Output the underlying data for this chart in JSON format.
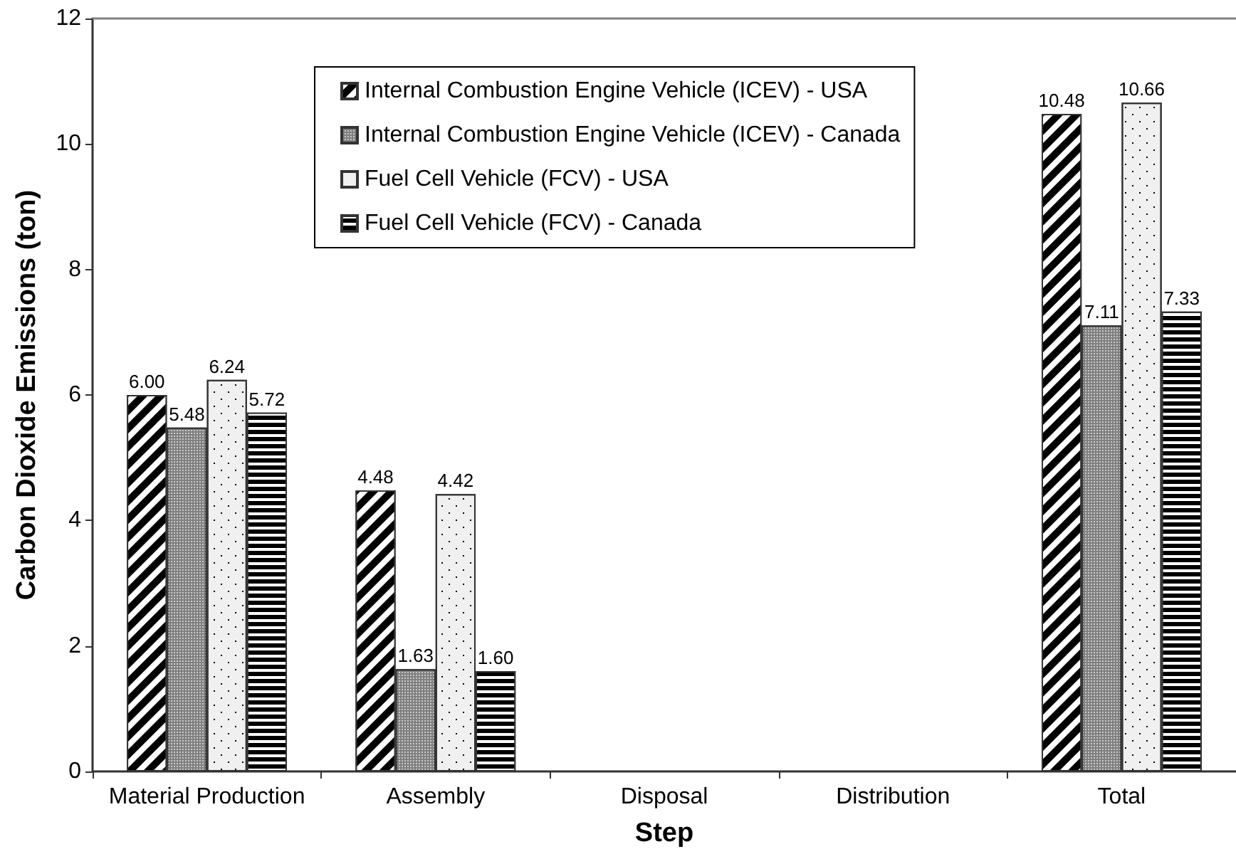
{
  "chart_data": {
    "type": "bar",
    "xlabel": "Step",
    "ylabel": "Carbon Dioxide Emissions (ton)",
    "categories": [
      "Material Production",
      "Assembly",
      "Disposal",
      "Distribution",
      "Total"
    ],
    "series": [
      {
        "name": "Internal Combustion Engine Vehicle (ICEV) - USA",
        "color": "#000000",
        "values": [
          6.0,
          4.48,
          null,
          null,
          10.48
        ],
        "value_labels": [
          "6.00",
          "4.48",
          null,
          null,
          "10.48"
        ]
      },
      {
        "name": "Internal Combustion Engine Vehicle (ICEV) - Canada",
        "color": "#808080",
        "values": [
          5.48,
          1.63,
          null,
          null,
          7.11
        ],
        "value_labels": [
          "5.48",
          "1.63",
          null,
          null,
          "7.11"
        ]
      },
      {
        "name": "Fuel Cell Vehicle (FCV) - USA",
        "color": "#f0f0f0",
        "values": [
          6.24,
          4.42,
          null,
          null,
          10.66
        ],
        "value_labels": [
          "6.24",
          "4.42",
          null,
          null,
          "10.66"
        ]
      },
      {
        "name": "Fuel Cell Vehicle (FCV) - Canada",
        "color": "#000000",
        "values": [
          5.72,
          1.6,
          null,
          null,
          7.33
        ],
        "value_labels": [
          "5.72",
          "1.60",
          null,
          null,
          "7.33"
        ]
      }
    ],
    "ylim": [
      0,
      12
    ],
    "yticks": [
      0,
      2,
      4,
      6,
      8,
      10,
      12
    ],
    "grid": false,
    "legend": "top"
  }
}
